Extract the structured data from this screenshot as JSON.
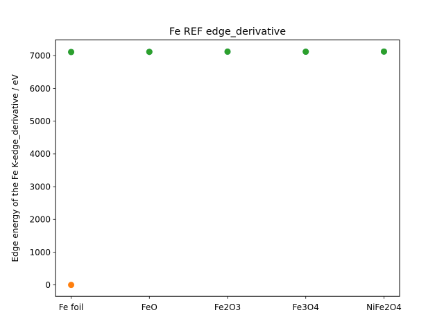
{
  "chart_data": {
    "type": "scatter",
    "title": "Fe REF edge_derivative",
    "xlabel": "",
    "ylabel": "Edge energy of the Fe K-edge_derivative / eV",
    "categories": [
      "Fe foil",
      "FeO",
      "Fe2O3",
      "Fe3O4",
      "NiFe2O4"
    ],
    "yticks": [
      0,
      1000,
      2000,
      3000,
      4000,
      5000,
      6000,
      7000
    ],
    "ylim": [
      -350,
      7480
    ],
    "grid": false,
    "legend": "none",
    "series": [
      {
        "color": "#1f77b4",
        "values": [
          7112,
          7118,
          7124,
          7121,
          7125
        ]
      },
      {
        "color": "#ff7f0e",
        "values": [
          0,
          null,
          null,
          null,
          null
        ]
      },
      {
        "color": "#2ca02c",
        "values": [
          7112,
          7118,
          7124,
          7121,
          7125
        ]
      }
    ]
  }
}
